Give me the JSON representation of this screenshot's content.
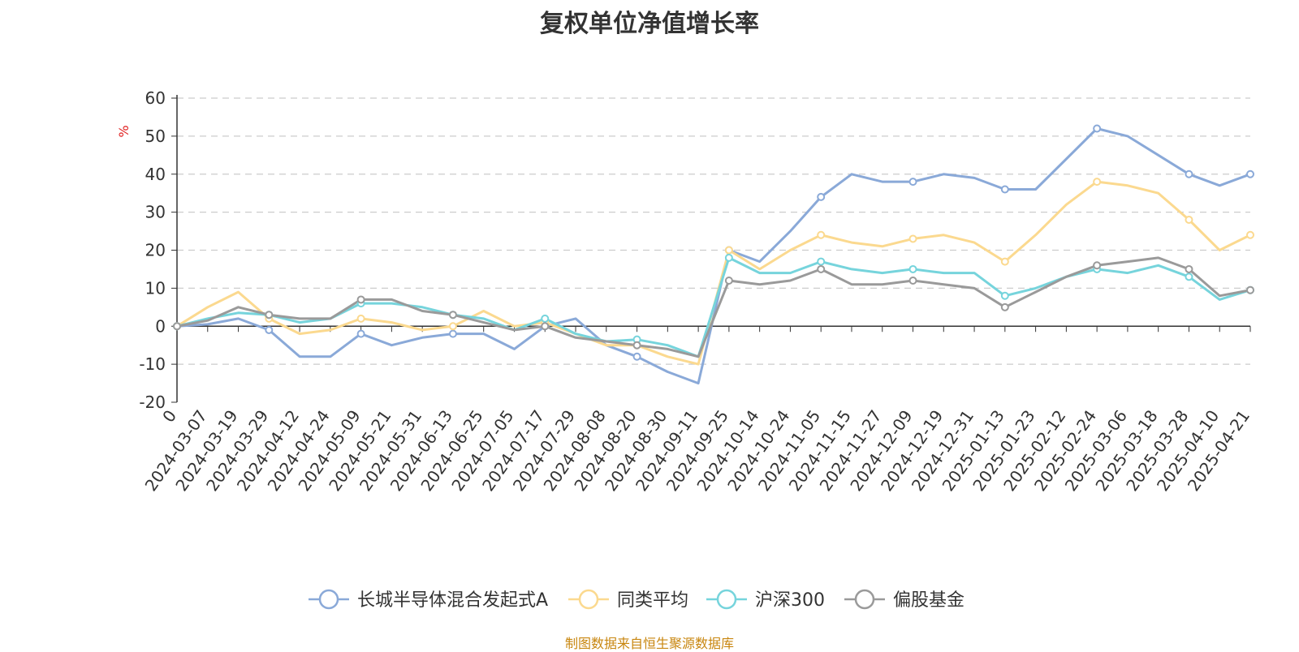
{
  "title": "复权单位净值增长率",
  "source_note": "制图数据来自恒生聚源数据库",
  "chart_data": {
    "type": "line",
    "title": "复权单位净值增长率",
    "ylabel": "%",
    "ylabel_color": "#e02020",
    "ylim": [
      -20,
      60
    ],
    "yticks": [
      60,
      50,
      40,
      30,
      20,
      10,
      0,
      -10,
      -20
    ],
    "grid": "dashed horizontal",
    "legend_position": "bottom-center",
    "x": [
      "0",
      "2024-03-07",
      "2024-03-19",
      "2024-03-29",
      "2024-04-12",
      "2024-04-24",
      "2024-05-09",
      "2024-05-21",
      "2024-05-31",
      "2024-06-13",
      "2024-06-25",
      "2024-07-05",
      "2024-07-17",
      "2024-07-29",
      "2024-08-08",
      "2024-08-20",
      "2024-08-30",
      "2024-09-11",
      "2024-09-25",
      "2024-10-14",
      "2024-10-24",
      "2024-11-05",
      "2024-11-15",
      "2024-11-27",
      "2024-12-09",
      "2024-12-19",
      "2024-12-31",
      "2025-01-13",
      "2025-01-23",
      "2025-02-12",
      "2025-02-24",
      "2025-03-06",
      "2025-03-18",
      "2025-03-28",
      "2025-04-10",
      "2025-04-21"
    ],
    "series": [
      {
        "name": "长城半导体混合发起式A",
        "color": "#8aa9d8",
        "values": [
          0,
          0.5,
          2,
          -1,
          -8,
          -8,
          -2,
          -5,
          -3,
          -2,
          -2,
          -6,
          0,
          2,
          -5,
          -8,
          -12,
          -15,
          20,
          17,
          25,
          34,
          40,
          38,
          38,
          40,
          39,
          36,
          36,
          44,
          52,
          50,
          45,
          40,
          37,
          40
        ]
      },
      {
        "name": "同类平均",
        "color": "#fbd98f",
        "values": [
          0,
          5,
          9,
          2,
          -2,
          -1,
          2,
          1,
          -1,
          0,
          4,
          0,
          1,
          -2,
          -5,
          -5,
          -8,
          -10,
          20,
          15,
          20,
          24,
          22,
          21,
          23,
          24,
          22,
          17,
          24,
          32,
          38,
          37,
          35,
          28,
          20,
          24
        ]
      },
      {
        "name": "沪深300",
        "color": "#76d4dc",
        "values": [
          0,
          2,
          3.5,
          3,
          1,
          2,
          6,
          6,
          5,
          3,
          2,
          -1,
          2,
          -2,
          -4,
          -3.5,
          -5,
          -8,
          18,
          14,
          14,
          17,
          15,
          14,
          15,
          14,
          14,
          8,
          10,
          13,
          15,
          14,
          16,
          13,
          7,
          9.5
        ]
      },
      {
        "name": "偏股基金",
        "color": "#9a9a9a",
        "values": [
          0,
          1.5,
          5,
          3,
          2,
          2,
          7,
          7,
          4,
          3,
          1,
          -1,
          0,
          -3,
          -4,
          -5,
          -6,
          -8,
          12,
          11,
          12,
          15,
          11,
          11,
          12,
          11,
          10,
          5,
          9,
          13,
          16,
          17,
          18,
          15,
          8,
          9.5
        ]
      }
    ]
  }
}
